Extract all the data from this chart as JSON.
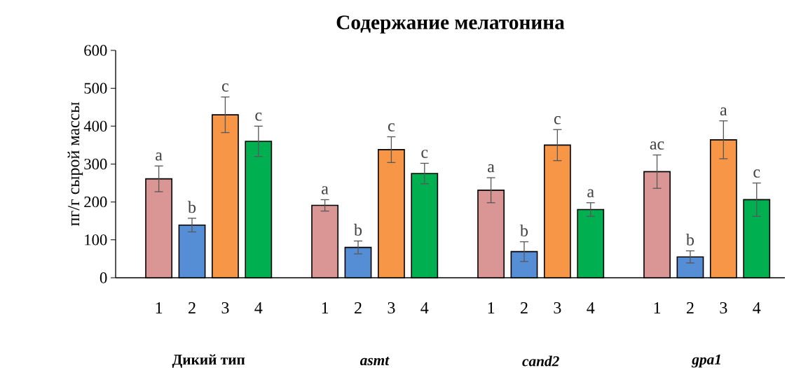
{
  "chart_data": {
    "type": "bar",
    "title": "Содержание мелатонина",
    "ylabel": "пг/г сырой массы",
    "categories": [
      "Дикий тип",
      "*asmt*",
      "*cand2*",
      "*gpa1*"
    ],
    "series": [
      {
        "name": "1",
        "color": "#da9694",
        "values": [
          261,
          191,
          231,
          280
        ],
        "errors": [
          34,
          15,
          33,
          44
        ],
        "value_labels": [
          "a",
          "a",
          "a",
          "ac"
        ]
      },
      {
        "name": "2",
        "color": "#558ed5",
        "values": [
          139,
          80,
          69,
          55
        ],
        "errors": [
          18,
          17,
          26,
          16
        ],
        "value_labels": [
          "b",
          "b",
          "b",
          "b"
        ]
      },
      {
        "name": "3",
        "color": "#f79646",
        "values": [
          430,
          338,
          350,
          364
        ],
        "errors": [
          47,
          34,
          41,
          50
        ],
        "value_labels": [
          "c",
          "c",
          "c",
          "a"
        ]
      },
      {
        "name": "4",
        "color": "#00b050",
        "values": [
          360,
          275,
          180,
          206
        ],
        "errors": [
          40,
          27,
          18,
          44
        ],
        "value_labels": [
          "c",
          "c",
          "a",
          "c"
        ]
      }
    ],
    "ylim": [
      0,
      600
    ],
    "yticks": [
      0,
      100,
      200,
      300,
      400,
      500,
      600
    ]
  }
}
